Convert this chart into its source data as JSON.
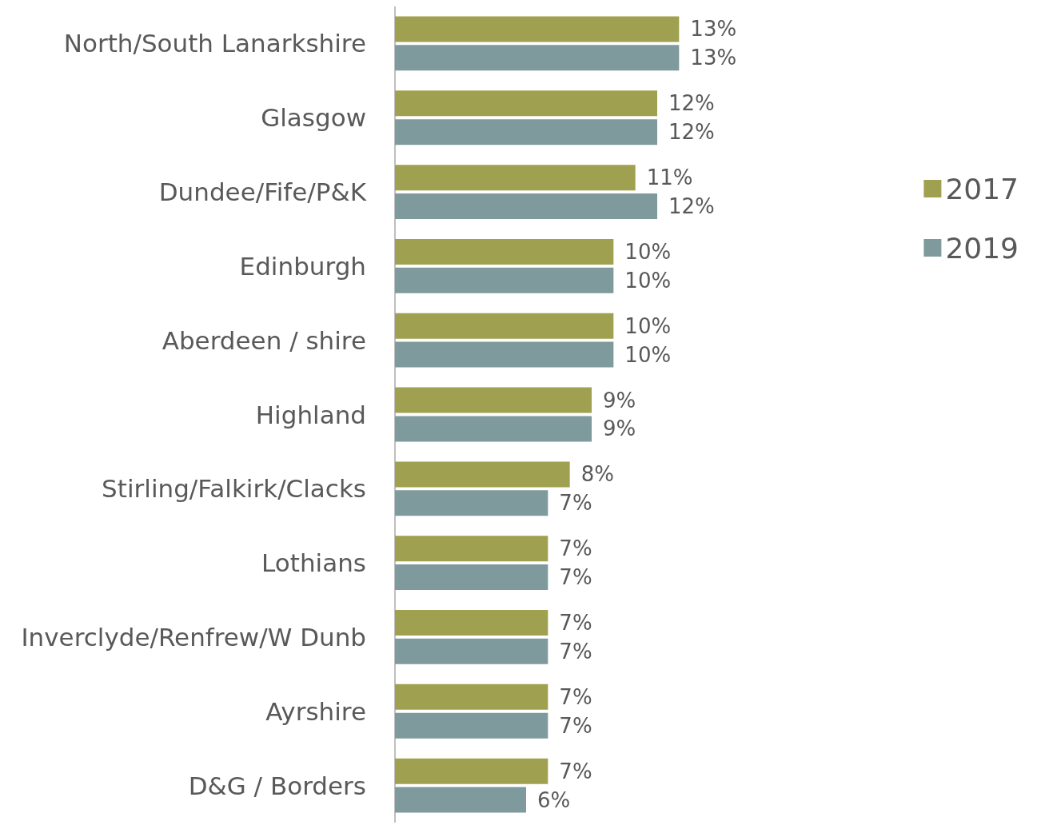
{
  "chart_data": {
    "type": "bar",
    "orientation": "horizontal",
    "legend": "right",
    "categories": [
      "North/South Lanarkshire",
      "Glasgow",
      "Dundee/Fife/P&K",
      "Edinburgh",
      "Aberdeen / shire",
      "Highland",
      "Stirling/Falkirk/Clacks",
      "Lothians",
      "Inverclyde/Renfrew/W Dunb",
      "Ayrshire",
      "D&G / Borders"
    ],
    "series": [
      {
        "name": "2017",
        "color": "#9fa050",
        "values": [
          13,
          12,
          11,
          10,
          10,
          9,
          8,
          7,
          7,
          7,
          7
        ],
        "value_labels": [
          "13%",
          "12%",
          "11%",
          "10%",
          "10%",
          "9%",
          "8%",
          "7%",
          "7%",
          "7%",
          "7%"
        ]
      },
      {
        "name": "2019",
        "color": "#7f9a9c",
        "values": [
          13,
          12,
          12,
          10,
          10,
          9,
          7,
          7,
          7,
          7,
          6
        ],
        "value_labels": [
          "13%",
          "12%",
          "12%",
          "10%",
          "10%",
          "9%",
          "7%",
          "7%",
          "7%",
          "7%",
          "6%"
        ]
      }
    ]
  }
}
